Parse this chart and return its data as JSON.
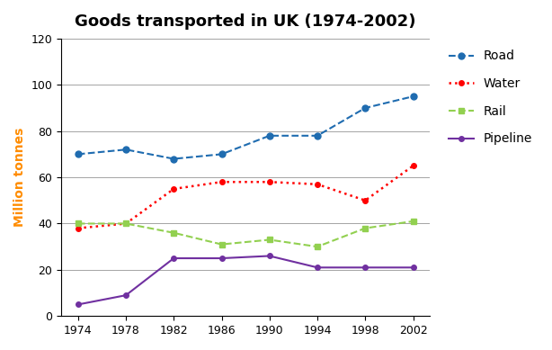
{
  "title": "Goods transported in UK (1974-2002)",
  "ylabel": "Million tonnes",
  "years": [
    1974,
    1978,
    1982,
    1986,
    1990,
    1994,
    1998,
    2002
  ],
  "road": [
    70,
    72,
    68,
    70,
    78,
    78,
    90,
    95
  ],
  "water": [
    38,
    40,
    55,
    58,
    58,
    57,
    50,
    65
  ],
  "rail": [
    40,
    40,
    36,
    31,
    33,
    30,
    38,
    41
  ],
  "pipeline": [
    5,
    9,
    25,
    25,
    26,
    21,
    21,
    21
  ],
  "road_color": "#1F6CB0",
  "water_color": "#FF0000",
  "rail_color": "#92D050",
  "pipeline_color": "#7030A0",
  "ylim": [
    0,
    120
  ],
  "yticks": [
    0,
    20,
    40,
    60,
    80,
    100,
    120
  ],
  "title_fontsize": 13,
  "axis_label_fontsize": 10,
  "tick_fontsize": 9,
  "legend_fontsize": 10
}
